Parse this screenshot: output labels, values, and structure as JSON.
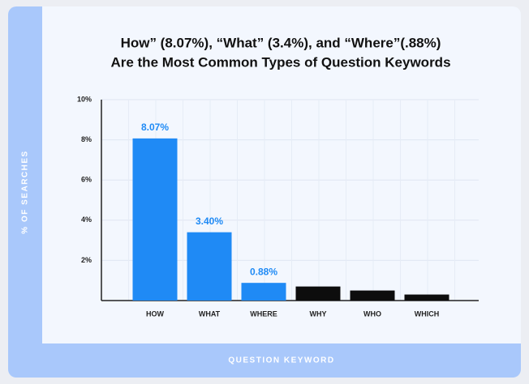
{
  "chart_data": {
    "type": "bar",
    "title": [
      "How” (8.07%), “What” (3.4%), and “Where”(.88%)",
      "Are the Most Common Types of Question Keywords"
    ],
    "x_label": "QUESTION KEYWORD",
    "y_label": "% OF SEARCHES",
    "categories": [
      "HOW",
      "WHAT",
      "WHERE",
      "WHY",
      "WHO",
      "WHICH"
    ],
    "values": [
      8.07,
      3.4,
      0.88,
      0.7,
      0.5,
      0.3
    ],
    "value_labels": [
      "8.07%",
      "3.40%",
      "0.88%",
      null,
      null,
      null
    ],
    "colors": [
      "#1f8af5",
      "#1f8af5",
      "#1f8af5",
      "#0d0d0d",
      "#0d0d0d",
      "#0d0d0d"
    ],
    "ylim": [
      0,
      10
    ],
    "yticks": [
      {
        "value": 2,
        "label": "2%"
      },
      {
        "value": 4,
        "label": "4%"
      },
      {
        "value": 6,
        "label": "6%"
      },
      {
        "value": 8,
        "label": "8%"
      },
      {
        "value": 10,
        "label": "10%"
      }
    ],
    "grid": true
  }
}
